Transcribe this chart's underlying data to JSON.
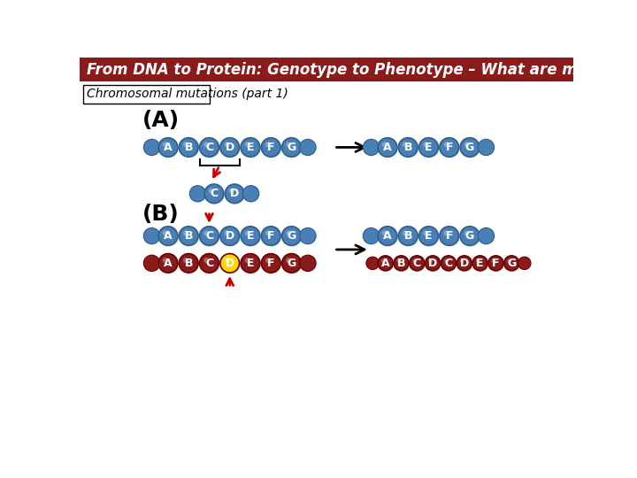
{
  "title": "From DNA to Protein: Genotype to Phenotype – What are mutations?",
  "subtitle": "Chromosomal mutations (part 1)",
  "header_color": "#8B1A1A",
  "bg_color": "#FFFFFF",
  "bead_blue": "#4A7FB5",
  "bead_dark_blue": "#2C5F8A",
  "bead_red": "#8B1A1A",
  "bead_dark_red": "#6B0000",
  "section_A_label": "(A)",
  "section_B_label": "(B)",
  "label_fontsize": 18,
  "title_fontsize": 12,
  "subtitle_fontsize": 10
}
